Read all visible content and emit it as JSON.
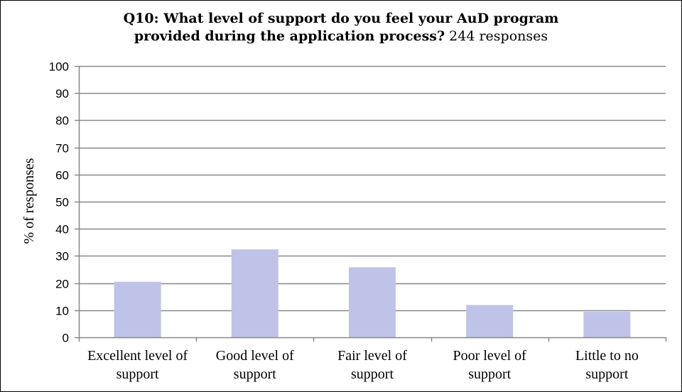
{
  "chart_data": {
    "type": "bar",
    "title_line1": "Q10: What level of support do you feel your  AuD program",
    "title_line2": "provided during the  application process?",
    "subtitle": "244 responses",
    "ylabel": "% of responses",
    "xlabel": "",
    "ylim": [
      0,
      100
    ],
    "yticks": [
      0,
      10,
      20,
      30,
      40,
      50,
      60,
      70,
      80,
      90,
      100
    ],
    "grid": true,
    "categories": [
      [
        "Excellent level of",
        "support"
      ],
      [
        "Good level of",
        "support"
      ],
      [
        "Fair level of",
        "support"
      ],
      [
        "Poor level of",
        "support"
      ],
      [
        "Little to no",
        "support"
      ]
    ],
    "values": [
      20.5,
      32.4,
      25.8,
      11.9,
      9.4
    ],
    "bar_color": "#bfc3e8",
    "grid_color": "#888888"
  }
}
